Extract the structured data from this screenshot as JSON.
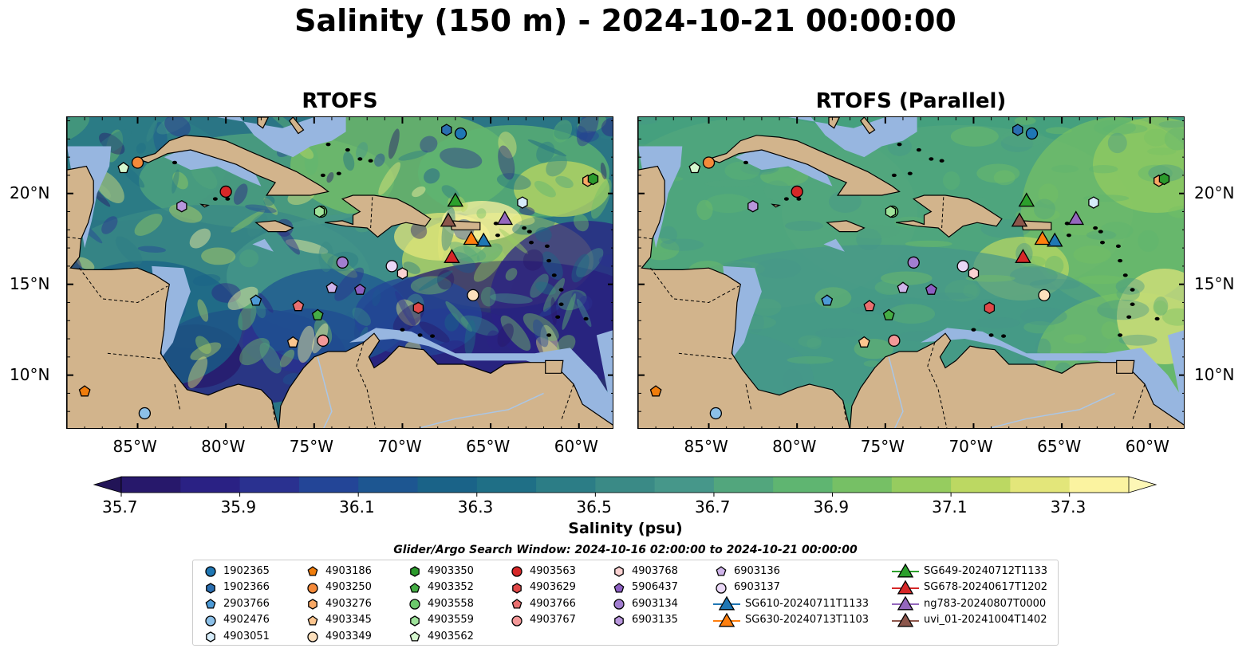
{
  "title": "Salinity (150 m) - 2024-10-21 00:00:00",
  "panels": [
    {
      "title": "RTOFS",
      "variant": "rtofs"
    },
    {
      "title": "RTOFS (Parallel)",
      "variant": "parallel"
    }
  ],
  "lon_ticks": [
    "85°W",
    "80°W",
    "75°W",
    "70°W",
    "65°W",
    "60°W"
  ],
  "lat_ticks": [
    "20°N",
    "15°N",
    "10°N"
  ],
  "colorbar": {
    "label": "Salinity (psu)",
    "ticks": [
      "35.7",
      "35.9",
      "36.1",
      "36.3",
      "36.5",
      "36.7",
      "36.9",
      "37.1",
      "37.3"
    ],
    "range": [
      35.7,
      37.4
    ],
    "extend": "both",
    "colors": [
      "#27186b",
      "#2a2184",
      "#2a3190",
      "#234597",
      "#1d5691",
      "#1a6388",
      "#1f6f86",
      "#2c7d86",
      "#3a8a86",
      "#46978a",
      "#52a67d",
      "#5fb571",
      "#76c065",
      "#96cc5f",
      "#bcd862",
      "#e3e67a",
      "#fbf3a0"
    ]
  },
  "search_window": "Glider/Argo Search Window: 2024-10-16 02:00:00 to 2024-10-21 00:00:00",
  "legend": [
    {
      "label": "1902365",
      "marker": "circle",
      "color": "#1f77b4"
    },
    {
      "label": "1902366",
      "marker": "hexagon",
      "color": "#2a6eb0"
    },
    {
      "label": "2903766",
      "marker": "pentagon",
      "color": "#4d9ad6"
    },
    {
      "label": "4902476",
      "marker": "circle",
      "color": "#8cc0e8"
    },
    {
      "label": "4903051",
      "marker": "hexagon",
      "color": "#d6ecfa"
    },
    {
      "label": "4903186",
      "marker": "pentagon",
      "color": "#f07d0c"
    },
    {
      "label": "4903250",
      "marker": "circle",
      "color": "#f58a3a"
    },
    {
      "label": "4903276",
      "marker": "hexagon",
      "color": "#f8a865"
    },
    {
      "label": "4903345",
      "marker": "pentagon",
      "color": "#fcc58e"
    },
    {
      "label": "4903349",
      "marker": "circle",
      "color": "#fde0bd"
    },
    {
      "label": "4903350",
      "marker": "hexagon",
      "color": "#2c9a2c"
    },
    {
      "label": "4903352",
      "marker": "pentagon",
      "color": "#45ad45"
    },
    {
      "label": "4903558",
      "marker": "circle",
      "color": "#6cc96c"
    },
    {
      "label": "4903559",
      "marker": "hexagon",
      "color": "#9ee29a"
    },
    {
      "label": "4903562",
      "marker": "pentagon",
      "color": "#d6f7cf"
    },
    {
      "label": "4903563",
      "marker": "circle",
      "color": "#d62728"
    },
    {
      "label": "4903629",
      "marker": "hexagon",
      "color": "#e04848"
    },
    {
      "label": "4903766",
      "marker": "pentagon",
      "color": "#ea7070"
    },
    {
      "label": "4903767",
      "marker": "circle",
      "color": "#f39898"
    },
    {
      "label": "4903768",
      "marker": "hexagon",
      "color": "#fbd2d2"
    },
    {
      "label": "5906437",
      "marker": "pentagon",
      "color": "#8c5fc2"
    },
    {
      "label": "6903134",
      "marker": "circle",
      "color": "#a27ed0"
    },
    {
      "label": "6903135",
      "marker": "hexagon",
      "color": "#b896dc"
    },
    {
      "label": "6903136",
      "marker": "pentagon",
      "color": "#cfb4ea"
    },
    {
      "label": "6903137",
      "marker": "circle",
      "color": "#ead8f7"
    },
    {
      "label": "SG610-20240711T1133",
      "marker": "triangle-line",
      "color": "#1f77b4"
    },
    {
      "label": "SG630-20240713T1103",
      "marker": "triangle-line",
      "color": "#ff7f0e"
    },
    {
      "label": "SG649-20240712T1133",
      "marker": "triangle-line",
      "color": "#2ca02c"
    },
    {
      "label": "SG678-20240617T1202",
      "marker": "triangle-line",
      "color": "#d62728"
    },
    {
      "label": "ng783-20240807T0000",
      "marker": "triangle-line",
      "color": "#9467bd"
    },
    {
      "label": "uvi_01-20241004T1402",
      "marker": "triangle-line",
      "color": "#8c564b"
    }
  ],
  "map_extent": {
    "lon": [
      -89,
      -58
    ],
    "lat": [
      7,
      24.2
    ]
  },
  "floats": [
    {
      "id": "1902365",
      "lon": -66.7,
      "lat": 23.3
    },
    {
      "id": "1902366",
      "lon": -67.5,
      "lat": 23.5
    },
    {
      "id": "2903766",
      "lon": -78.3,
      "lat": 14.1
    },
    {
      "id": "4902476",
      "lon": -84.6,
      "lat": 7.9
    },
    {
      "id": "4903051",
      "lon": -63.2,
      "lat": 19.5
    },
    {
      "id": "4903186",
      "lon": -88.0,
      "lat": 9.1
    },
    {
      "id": "4903250",
      "lon": -85.0,
      "lat": 21.7
    },
    {
      "id": "4903276",
      "lon": -59.5,
      "lat": 20.7
    },
    {
      "id": "4903345",
      "lon": -76.2,
      "lat": 11.8
    },
    {
      "id": "4903349",
      "lon": -66.0,
      "lat": 14.4
    },
    {
      "id": "4903350",
      "lon": -59.2,
      "lat": 20.8
    },
    {
      "id": "4903352",
      "lon": -74.8,
      "lat": 13.3
    },
    {
      "id": "4903558",
      "lon": -74.6,
      "lat": 19.0
    },
    {
      "id": "4903559",
      "lon": -74.7,
      "lat": 19.0
    },
    {
      "id": "4903562",
      "lon": -85.8,
      "lat": 21.4
    },
    {
      "id": "4903563",
      "lon": -80.0,
      "lat": 20.1
    },
    {
      "id": "4903629",
      "lon": -69.1,
      "lat": 13.7
    },
    {
      "id": "4903766",
      "lon": -75.9,
      "lat": 13.8
    },
    {
      "id": "4903767",
      "lon": -74.5,
      "lat": 11.9
    },
    {
      "id": "4903768",
      "lon": -70.0,
      "lat": 15.6
    },
    {
      "id": "5906437",
      "lon": -72.4,
      "lat": 14.7
    },
    {
      "id": "6903134",
      "lon": -73.4,
      "lat": 16.2
    },
    {
      "id": "6903135",
      "lon": -82.5,
      "lat": 19.3
    },
    {
      "id": "6903136",
      "lon": -74.0,
      "lat": 14.8
    },
    {
      "id": "6903137",
      "lon": -70.6,
      "lat": 16.0
    },
    {
      "id": "SG610-20240711T1133",
      "lon": -65.4,
      "lat": 17.4
    },
    {
      "id": "SG630-20240713T1103",
      "lon": -66.1,
      "lat": 17.5
    },
    {
      "id": "SG649-20240712T1133",
      "lon": -67.0,
      "lat": 19.6
    },
    {
      "id": "SG678-20240617T1202",
      "lon": -67.2,
      "lat": 16.5
    },
    {
      "id": "ng783-20240807T0000",
      "lon": -64.2,
      "lat": 18.6
    },
    {
      "id": "uvi_01-20241004T1402",
      "lon": -67.4,
      "lat": 18.5
    }
  ]
}
